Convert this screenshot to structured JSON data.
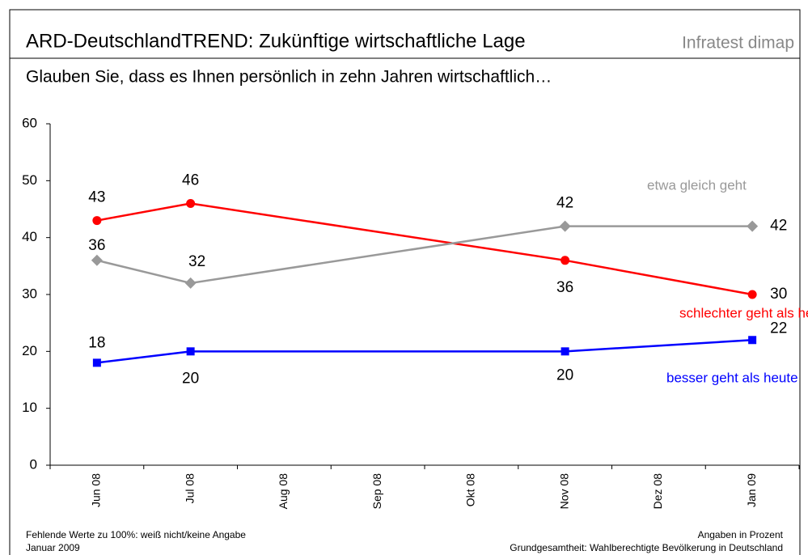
{
  "chart_data": {
    "type": "line",
    "title": "ARD-DeutschlandTREND: Zukünftige wirtschaftliche Lage",
    "brand": "Infratest dimap",
    "subtitle": "Glauben Sie, dass es Ihnen persönlich in zehn Jahren wirtschaftlich…",
    "categories": [
      "Jun 08",
      "Jul 08",
      "Aug 08",
      "Sep 08",
      "Okt 08",
      "Nov 08",
      "Dez 08",
      "Jan 09"
    ],
    "series": [
      {
        "name": "schlechter geht als heute",
        "color": "#ff0000",
        "marker": "circle",
        "values": [
          43,
          46,
          null,
          null,
          null,
          36,
          null,
          30
        ]
      },
      {
        "name": "etwa gleich geht",
        "color": "#999999",
        "marker": "diamond",
        "values": [
          36,
          32,
          null,
          null,
          null,
          42,
          null,
          42
        ]
      },
      {
        "name": "besser geht als heute",
        "color": "#0000ff",
        "marker": "square",
        "values": [
          18,
          20,
          null,
          null,
          null,
          20,
          null,
          22
        ]
      }
    ],
    "ylim": [
      0,
      60
    ],
    "yticks": [
      0,
      10,
      20,
      30,
      40,
      50,
      60
    ],
    "footnotes": [
      "Fehlende Werte zu 100%: weiß nicht/keine Angabe",
      "Januar 2009"
    ],
    "notes_right": [
      "Angaben in Prozent",
      "Grundgesamtheit: Wahlberechtigte Bevölkerung in Deutschland"
    ]
  }
}
